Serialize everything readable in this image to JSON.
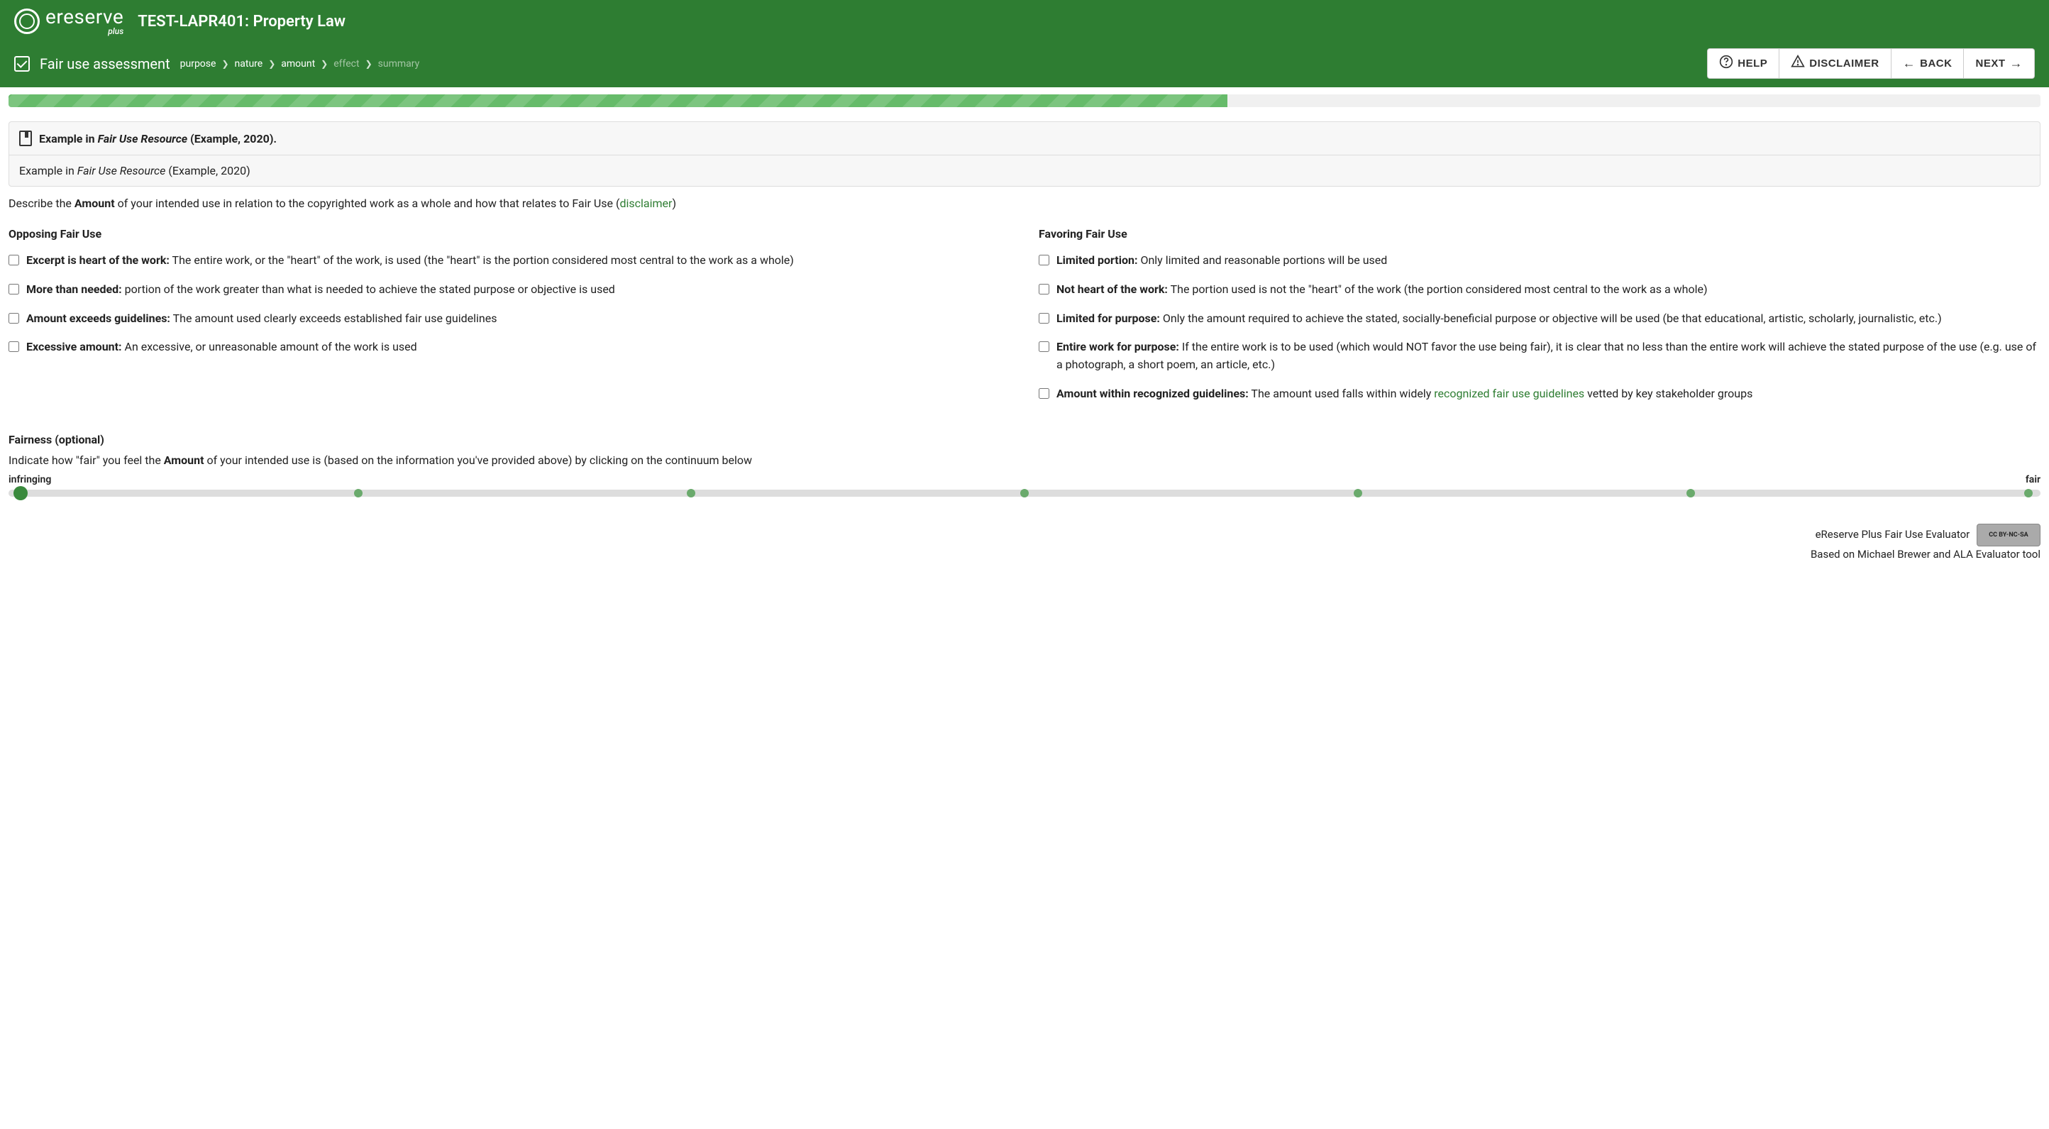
{
  "brand": {
    "name": "ereserve",
    "sub": "plus"
  },
  "course_title": "TEST-LAPR401: Property Law",
  "assessment_label": "Fair use assessment",
  "breadcrumb": [
    {
      "label": "purpose",
      "dim": false
    },
    {
      "label": "nature",
      "dim": false
    },
    {
      "label": "amount",
      "dim": false
    },
    {
      "label": "effect",
      "dim": true
    },
    {
      "label": "summary",
      "dim": true
    }
  ],
  "nav": {
    "help": "HELP",
    "disclaimer": "DISCLAIMER",
    "back": "BACK",
    "next": "NEXT"
  },
  "progress_pct": 60,
  "info": {
    "top_prefix": "Example in ",
    "top_ital": "Fair Use Resource",
    "top_suffix": " (Example, 2020).",
    "bottom_prefix": "Example in ",
    "bottom_ital": "Fair Use Resource",
    "bottom_suffix": " (Example, 2020)"
  },
  "describe": {
    "pre": "Describe the ",
    "bold": "Amount",
    "mid": " of your intended use in relation to the copyrighted work as a whole and how that relates to Fair Use (",
    "link": "disclaimer",
    "post": ")"
  },
  "opposing": {
    "title": "Opposing Fair Use",
    "items": [
      {
        "label": "Excerpt is heart of the work:",
        "desc": " The entire work, or the \"heart\" of the work, is used (the \"heart\" is the portion considered most central to the work as a whole)"
      },
      {
        "label": "More than needed:",
        "desc": " portion of the work greater than what is needed to achieve the stated purpose or objective is used"
      },
      {
        "label": "Amount exceeds guidelines:",
        "desc": " The amount used clearly exceeds established fair use guidelines"
      },
      {
        "label": "Excessive amount:",
        "desc": " An excessive, or unreasonable amount of the work is used"
      }
    ]
  },
  "favoring": {
    "title": "Favoring Fair Use",
    "items": [
      {
        "label": "Limited portion:",
        "desc": " Only limited and reasonable portions will be used"
      },
      {
        "label": "Not heart of the work:",
        "desc": " The portion used is not the \"heart\" of the work (the portion considered most central to the work as a whole)"
      },
      {
        "label": "Limited for purpose:",
        "desc": " Only the amount required to achieve the stated, socially-beneficial purpose or objective will be used (be that educational, artistic, scholarly, journalistic, etc.)"
      },
      {
        "label": "Entire work for purpose:",
        "desc": " If the entire work is to be used (which would NOT favor the use being fair), it is clear that no less than the entire work will achieve the stated purpose of the use (e.g. use of a photograph, a short poem, an article, etc.)"
      },
      {
        "label": "Amount within recognized guidelines:",
        "desc_pre": " The amount used falls within widely ",
        "link": "recognized fair use guidelines",
        "desc_post": " vetted by key stakeholder groups"
      }
    ]
  },
  "fairness": {
    "title": "Fairness (optional)",
    "desc_pre": "Indicate how \"fair\" you feel the ",
    "desc_bold": "Amount",
    "desc_post": " of your intended use is (based on the information you've provided above) by clicking on the continuum below",
    "left_label": "infringing",
    "right_label": "fair",
    "dots_pct": [
      0.6,
      17.2,
      33.6,
      50,
      66.4,
      82.8,
      99.4
    ],
    "thumb_pct": 0.6
  },
  "footer": {
    "line1": "eReserve Plus Fair Use Evaluator",
    "line2": "Based on Michael Brewer and ALA Evaluator tool",
    "cc": "CC BY-NC-SA"
  },
  "colors": {
    "green_primary": "#2e7d32",
    "green_light": "#66bb6a",
    "link": "#2e7d32"
  }
}
